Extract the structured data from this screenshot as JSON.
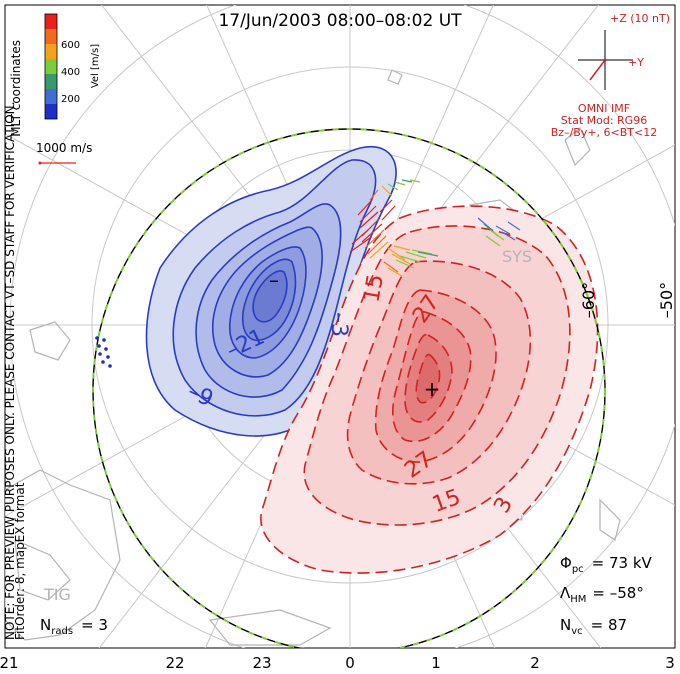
{
  "title": "17/Jun/2003 08:00–08:02 UT",
  "colorbar": {
    "label": "Vel [m/s]",
    "ticks": [
      "600",
      "400",
      "200"
    ],
    "colors": [
      "#e8211b",
      "#f26a1b",
      "#f6a21e",
      "#7ccd3a",
      "#3a9a6e",
      "#3f6fd1",
      "#1e2fc8"
    ]
  },
  "coords_label": "MLT coordinates",
  "scale_label": "1000 m/s",
  "watermark": "NOTE: FOR PREVIEW PURPOSES ONLY. PLEASE CONTACT VT–SD STAFF FOR VERIFICATION.",
  "fit_order": "FitOrder: 8, mapEX format",
  "imf": {
    "z_label": "+Z (10 nT)",
    "y_label": "+Y",
    "source": "OMNI IMF",
    "model": "Stat Mod: RG96",
    "condition": "Bz–/By+, 6<BT<12",
    "color": "#cc2222"
  },
  "lat_labels": [
    "–60°",
    "–50°"
  ],
  "mlt_labels": [
    "21",
    "22",
    "23",
    "0",
    "1",
    "2",
    "3"
  ],
  "contour_labels_neg": [
    "–21",
    "–9",
    "–3"
  ],
  "contour_labels_pos": [
    "15",
    "27",
    "27",
    "15",
    "3"
  ],
  "station_labels": [
    "SYS",
    "TIG"
  ],
  "centers": {
    "min": "–",
    "max": "+"
  },
  "stats": {
    "phi_pc": {
      "symbol": "Φ",
      "sub": "pc",
      "value": "= 73 kV"
    },
    "lambda_hm": {
      "symbol": "Λ",
      "sub": "HM",
      "value": "= –58°"
    },
    "n_vc": {
      "symbol": "N",
      "sub": "vc",
      "value": "= 87"
    },
    "n_rads": {
      "symbol": "N",
      "sub": "rads",
      "value": "= 3"
    }
  },
  "contour_colors": {
    "negative": "#2a3cc4",
    "positive": "#d42020",
    "boundary": "#7ccd3a"
  }
}
